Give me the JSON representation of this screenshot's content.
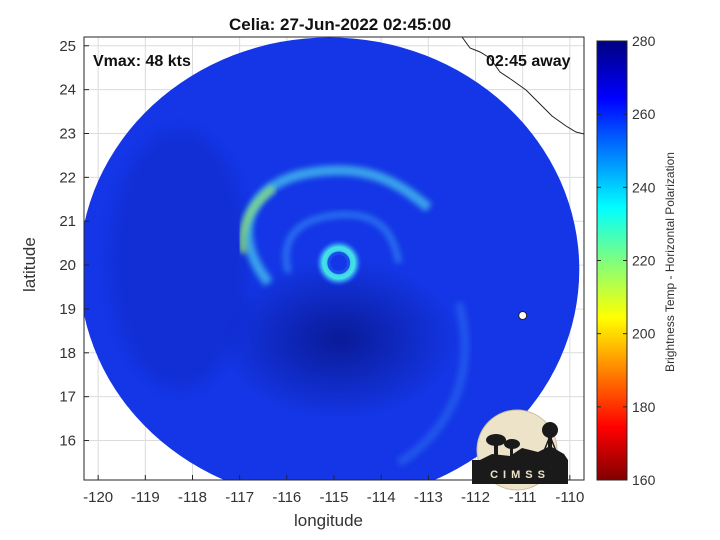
{
  "chart_data": {
    "type": "heatmap",
    "title": "Celia: 27-Jun-2022 02:45:00",
    "xlabel": "longitude",
    "ylabel": "latitude",
    "xlim": [
      -120.3,
      -109.7
    ],
    "ylim": [
      15.1,
      25.2
    ],
    "xticks": [
      -120,
      -119,
      -118,
      -117,
      -116,
      -115,
      -114,
      -113,
      -112,
      -111,
      -110
    ],
    "yticks": [
      16,
      17,
      18,
      19,
      20,
      21,
      22,
      23,
      24,
      25
    ],
    "grid": true,
    "annotations": {
      "vmax": "Vmax: 48 kts",
      "away": "02:45 away"
    },
    "storm_center": {
      "lon": -114.9,
      "lat": 20.05
    },
    "swath_center": {
      "lon": -115.1,
      "lat": 19.9
    },
    "colorbar": {
      "label": "Brightness Temp - Horizontal Polarization",
      "min": 160,
      "max": 280,
      "ticks": [
        160,
        180,
        200,
        220,
        240,
        260,
        280
      ],
      "colormap": "jet"
    },
    "logo_text": "CIMSS"
  },
  "colors": {
    "swath_base": "#1436e6",
    "swath_dark": "#0b1fa8",
    "eyewall": "#3fe0e8",
    "band_cyan": "#46c8ee",
    "band_green": "#8ae07a",
    "logo_bg": "#ece3c8"
  }
}
